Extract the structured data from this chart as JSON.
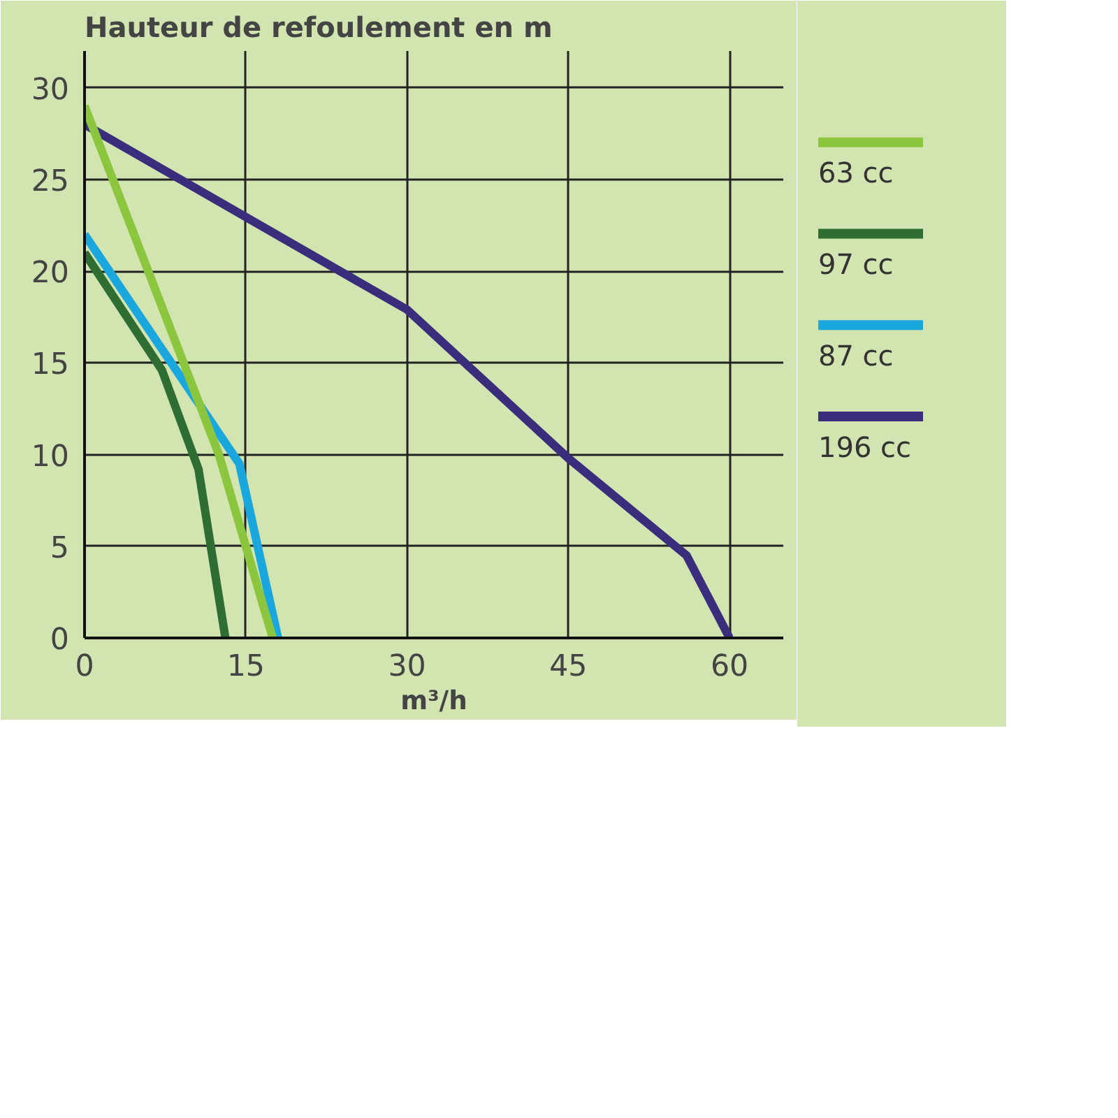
{
  "chart_data": {
    "type": "line",
    "ylabel": "Hauteur de refoulement en m",
    "xlabel": "m³/h",
    "xlim": [
      0,
      65
    ],
    "ylim": [
      0,
      32
    ],
    "xticks": [
      0,
      15,
      30,
      45,
      60
    ],
    "yticks": [
      0,
      5,
      10,
      15,
      20,
      25,
      30
    ],
    "grid": true,
    "legend": "right",
    "marker": "none",
    "line_style": "solid",
    "series": [
      {
        "name": "63 cc",
        "color": "#8cc63f",
        "x": [
          0,
          12.5,
          17.5
        ],
        "values": [
          29,
          10,
          0
        ]
      },
      {
        "name": "97 cc",
        "color": "#2f6e33",
        "x": [
          0,
          7.2,
          10.6,
          13.1
        ],
        "values": [
          21,
          14.6,
          9.2,
          0
        ]
      },
      {
        "name": "87 cc",
        "color": "#19a7de",
        "x": [
          0,
          14.4,
          18
        ],
        "values": [
          22,
          9.5,
          0
        ]
      },
      {
        "name": "196 cc",
        "color": "#3a2d7c",
        "x": [
          0,
          30,
          45,
          56,
          60
        ],
        "values": [
          28,
          17.9,
          9.8,
          4.5,
          0
        ]
      }
    ]
  }
}
